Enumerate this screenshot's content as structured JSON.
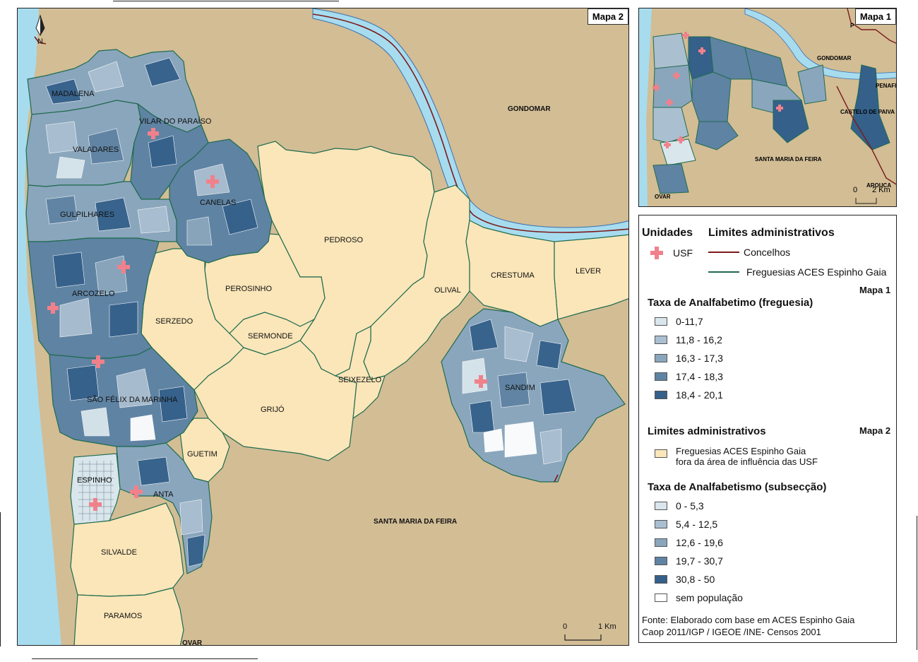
{
  "map2": {
    "tag": "Mapa 2",
    "north": "N",
    "scale": {
      "start": "0",
      "end": "1 Km"
    },
    "labels": {
      "madalena": "MADALENA",
      "vilar": "VILAR DO PARAÍSO",
      "valadares": "VALADARES",
      "canelas": "CANELAS",
      "gulpilhares": "GULPILHARES",
      "pedroso": "PEDROSO",
      "perosinho": "PEROSINHO",
      "arcozelo": "ARCOZELO",
      "serzedo": "SERZEDO",
      "sermonde": "SERMONDE",
      "olival": "OLIVAL",
      "crestuma": "CRESTUMA",
      "lever": "LEVER",
      "seixezelo": "SEIXEZELO",
      "grijo": "GRIJÓ",
      "sandim": "SANDIM",
      "sao_felix": "SÃO FÉLIX DA MARINHA",
      "guetim": "GUETIM",
      "espinho": "ESPINHO",
      "anta": "ANTA",
      "silvalde": "SILVALDE",
      "paramos": "PARAMOS",
      "gondomar": "GONDOMAR",
      "santa_maria": "SANTA MARIA DA FEIRA",
      "ovar": "OVAR"
    }
  },
  "map1": {
    "tag": "Mapa 1",
    "scale": {
      "start": "0",
      "end": "2 Km"
    },
    "labels": {
      "gondomar": "GONDOMAR",
      "penafiel": "PENAFIEL",
      "castelo": "CASTELO DE PAIVA",
      "santa_maria": "SANTA MARIA DA FEIRA",
      "ovar": "OVAR",
      "arouca": "AROUCA",
      "p": "P"
    }
  },
  "legend": {
    "unidades": "Unidades",
    "limites": "Limites administrativos",
    "usf": "USF",
    "concelhos": "Concelhos",
    "freguesias": "Freguesias ACES Espinho Gaia",
    "mapa1": "Mapa 1",
    "taxa_freguesia": "Taxa de Analfabetimo (freguesia)",
    "classes1": [
      "0-11,7",
      "11,8 - 16,2",
      "16,3 - 17,3",
      "17,4 - 18,3",
      "18,4 - 20,1"
    ],
    "limites2": "Limites administrativos",
    "mapa2": "Mapa 2",
    "fora_line1": "Freguesias ACES Espinho Gaia",
    "fora_line2": "fora da área de influência das USF",
    "taxa_subseccao": "Taxa de Analfabetismo (subsecção)",
    "classes2": [
      "0 - 5,3",
      "5,4 - 12,5",
      "12,6 - 19,6",
      "19,7 - 30,7",
      "30,8 - 50",
      "sem população"
    ],
    "fonte1": "Fonte: Elaborado com base em ACES Espinho Gaia",
    "fonte2": "Caop 2011/IGP / IGEOE /INE- Censos 2001"
  },
  "colors": {
    "land": "#d2bd95",
    "sea": "#a7dcef",
    "beige": "#fbe6b9",
    "c1": "#d9e6ec",
    "c2": "#aabfd0",
    "c3": "#8aa6bd",
    "c4": "#5f83a3",
    "c5": "#34608a",
    "usf": "#f0818b",
    "concelho": "#7b1a1a",
    "freguesia": "#1f6b4e"
  }
}
